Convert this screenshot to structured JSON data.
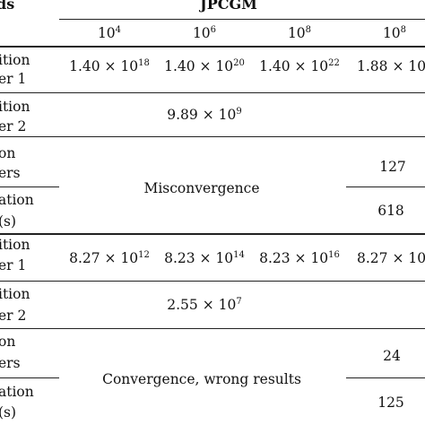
{
  "header": {
    "method_label_fragment": "ds",
    "group_title": "JPCGM",
    "columns": [
      {
        "base": "10",
        "exp": "4"
      },
      {
        "base": "10",
        "exp": "6"
      },
      {
        "base": "10",
        "exp": "8"
      },
      {
        "base": "10",
        "exp": "8"
      }
    ]
  },
  "block1": {
    "row1": {
      "label_a": "ition",
      "label_b": "er 1",
      "values": [
        {
          "mant": "1.40 × 10",
          "exp": "18"
        },
        {
          "mant": "1.40 × 10",
          "exp": "20"
        },
        {
          "mant": "1.40 × 10",
          "exp": "22"
        },
        {
          "mant": "1.88 × 10",
          "exp": ""
        }
      ]
    },
    "row2": {
      "label_a": "ition",
      "label_b": "er 2",
      "value": {
        "mant": "9.89 × 10",
        "exp": "9"
      }
    },
    "row3": {
      "label_a": "on",
      "label_b": "ers",
      "label_c": "ation",
      "label_d": "(s)",
      "merged_text": "Misconvergence",
      "last_iterations": "127",
      "last_time": "618"
    }
  },
  "block2": {
    "row1": {
      "label_a": "ition",
      "label_b": "er 1",
      "values": [
        {
          "mant": "8.27 × 10",
          "exp": "12"
        },
        {
          "mant": "8.23 × 10",
          "exp": "14"
        },
        {
          "mant": "8.23 × 10",
          "exp": "16"
        },
        {
          "mant": "8.27 × 10",
          "exp": ""
        }
      ]
    },
    "row2": {
      "label_a": "ition",
      "label_b": "er 2",
      "value": {
        "mant": "2.55 × 10",
        "exp": "7"
      }
    },
    "row3": {
      "label_a": "on",
      "label_b": "ers",
      "label_c": "ation",
      "label_d": "(s)",
      "merged_text": "Convergence, wrong results",
      "last_iterations": "24",
      "last_time": "125"
    }
  }
}
